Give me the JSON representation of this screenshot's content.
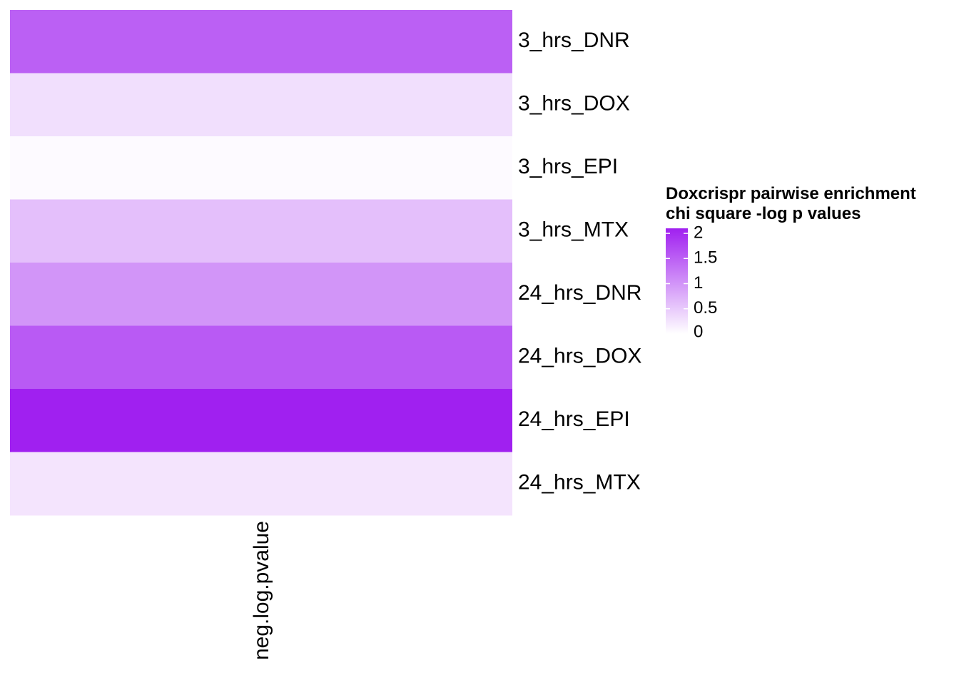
{
  "chart_data": {
    "type": "heatmap",
    "rows": [
      "3_hrs_DNR",
      "3_hrs_DOX",
      "3_hrs_EPI",
      "3_hrs_MTX",
      "24_hrs_DNR",
      "24_hrs_DOX",
      "24_hrs_EPI",
      "24_hrs_MTX"
    ],
    "columns": [
      "neg.log.pvalue"
    ],
    "values": [
      [
        1.5
      ],
      [
        0.3
      ],
      [
        0.05
      ],
      [
        0.6
      ],
      [
        1.0
      ],
      [
        1.55
      ],
      [
        2.1
      ],
      [
        0.25
      ]
    ],
    "color_scale": {
      "low": "#ffffff",
      "high": "#a020f0",
      "min": 0,
      "max": 2.1
    },
    "legend": {
      "title_lines": [
        "Doxcrispr pairwise enrichment",
        "chi square -log p values"
      ],
      "ticks": [
        0,
        0.5,
        1,
        1.5,
        2
      ],
      "tick_labels": [
        "0",
        "0.5",
        "1",
        "1.5",
        "2"
      ]
    }
  }
}
